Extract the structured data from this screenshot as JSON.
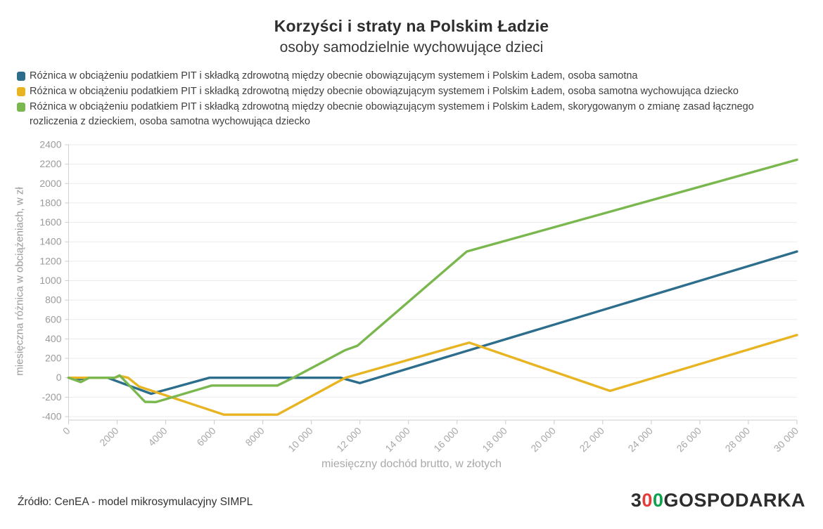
{
  "header": {
    "title": "Korzyści i straty na Polskim Ładzie",
    "subtitle": "osoby samodzielnie wychowujące dzieci"
  },
  "chart_data": {
    "type": "line",
    "title": "Korzyści i straty na Polskim Ładzie",
    "subtitle": "osoby samodzielnie wychowujące dzieci",
    "xlabel": "miesięczny dochód brutto, w złotych",
    "ylabel": "miesięczna różnica w obciążeniach, w zł",
    "xlim": [
      0,
      30000
    ],
    "ylim": [
      -400,
      2400
    ],
    "x_ticks": [
      0,
      2000,
      4000,
      6000,
      8000,
      10000,
      12000,
      14000,
      16000,
      18000,
      20000,
      22000,
      24000,
      26000,
      28000,
      30000
    ],
    "x_tick_labels": [
      "0",
      "2000",
      "4000",
      "6000",
      "8000",
      "10 000",
      "12 000",
      "14 000",
      "16 000",
      "18 000",
      "20 000",
      "22 000",
      "24 000",
      "26 000",
      "28 000",
      "30 000"
    ],
    "y_ticks": [
      -400,
      -200,
      0,
      200,
      400,
      600,
      800,
      1000,
      1200,
      1400,
      1600,
      1800,
      2000,
      2200,
      2400
    ],
    "grid": "horizontal",
    "legend_position": "top-left",
    "series": [
      {
        "name": "Różnica w obciążeniu podatkiem PIT i składką zdrowotną między obecnie obowiązującym systemem i Polskim Ładem, osoba samotna",
        "color": "#2d6e8c",
        "points": [
          [
            0,
            0
          ],
          [
            400,
            -18
          ],
          [
            800,
            0
          ],
          [
            1600,
            0
          ],
          [
            3400,
            -165
          ],
          [
            5800,
            0
          ],
          [
            11200,
            0
          ],
          [
            12000,
            -55
          ],
          [
            30000,
            1300
          ]
        ]
      },
      {
        "name": "Różnica w obciążeniu podatkiem PIT i składką zdrowotną między obecnie obowiązującym systemem i Polskim Ładem, osoba samotna wychowująca dziecko",
        "color": "#e8b422",
        "points": [
          [
            0,
            0
          ],
          [
            1900,
            0
          ],
          [
            2100,
            18
          ],
          [
            2450,
            0
          ],
          [
            2900,
            -90
          ],
          [
            6400,
            -380
          ],
          [
            8600,
            -380
          ],
          [
            11400,
            0
          ],
          [
            16500,
            362
          ],
          [
            22300,
            -135
          ],
          [
            30000,
            440
          ]
        ]
      },
      {
        "name": "Różnica w obciążeniu podatkiem PIT i składką zdrowotną między obecnie obowiązującym systemem i Polskim Ładem, skorygowanym o zmianę zasad łącznego rozliczenia z dzieckiem, osoba samotna wychowująca dziecko",
        "color": "#7ab74e",
        "points": [
          [
            0,
            0
          ],
          [
            500,
            -45
          ],
          [
            850,
            0
          ],
          [
            1900,
            0
          ],
          [
            2100,
            25
          ],
          [
            3150,
            -248
          ],
          [
            3600,
            -250
          ],
          [
            5900,
            -80
          ],
          [
            8600,
            -80
          ],
          [
            9250,
            0
          ],
          [
            11400,
            285
          ],
          [
            11900,
            330
          ],
          [
            16400,
            1300
          ],
          [
            30000,
            2245
          ]
        ]
      }
    ]
  },
  "footer": {
    "source": "Źródło: CenEA - model mikrosymulacyjny SIMPL",
    "logo": {
      "part_3": "3",
      "part_zero_red": "0",
      "part_zero_green": "0",
      "part_rest": "GOSPODARKA",
      "red": "#e23c3c",
      "green": "#0ea24e",
      "dark": "#2d2d2d"
    }
  }
}
